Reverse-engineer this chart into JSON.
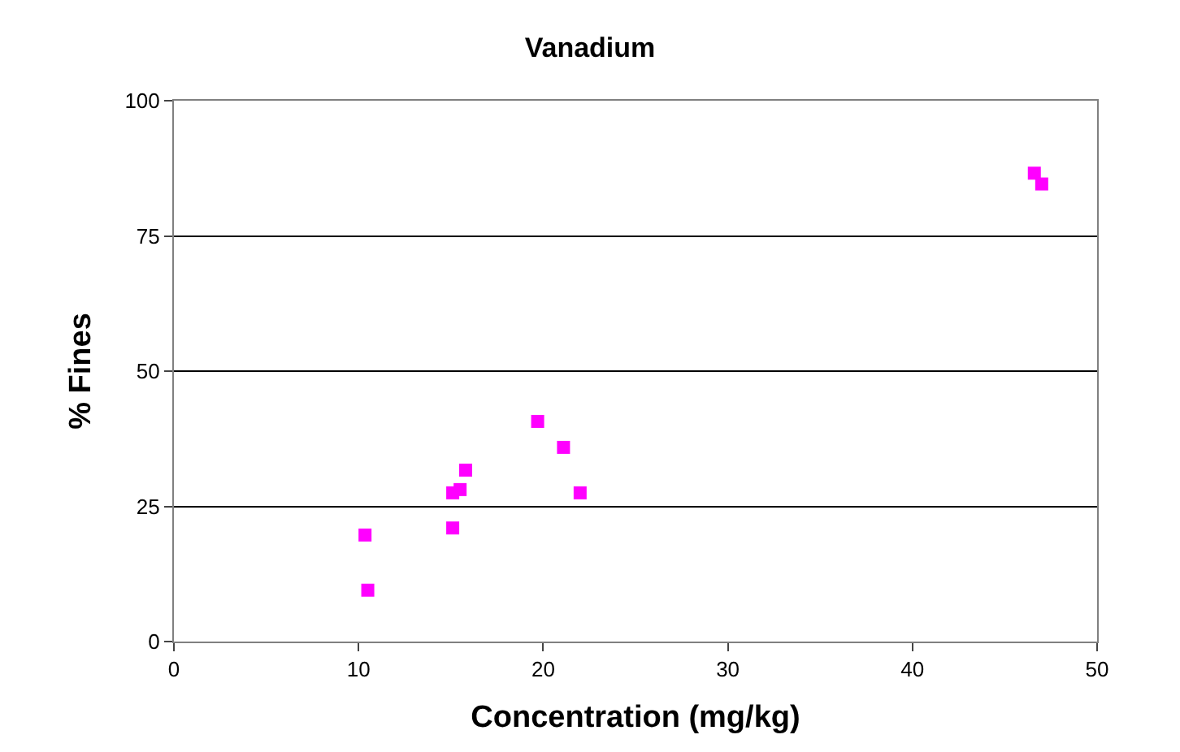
{
  "chart_data": {
    "type": "scatter",
    "title": "Vanadium",
    "xlabel": "Concentration (mg/kg)",
    "ylabel": "% Fines",
    "x": [
      10.35,
      10.5,
      15.1,
      15.1,
      15.5,
      15.8,
      19.7,
      21.1,
      22.0,
      46.6,
      47.0
    ],
    "values": [
      19.7,
      9.5,
      21,
      27.5,
      28.1,
      31.7,
      40.7,
      35.9,
      27.5,
      86.6,
      84.6
    ],
    "color": "#ff00ff",
    "marker": "square",
    "xlim": [
      0,
      50
    ],
    "xticks": [
      0,
      10,
      20,
      30,
      40,
      50
    ],
    "ylim": [
      0,
      100
    ],
    "yticks": [
      0,
      25,
      50,
      75,
      100
    ],
    "grid": "y",
    "legend": false
  }
}
